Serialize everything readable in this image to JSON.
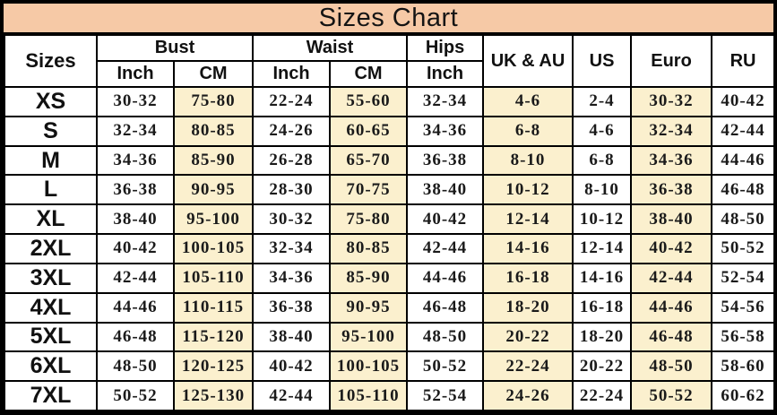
{
  "chart_data": {
    "type": "table",
    "title": "Sizes Chart",
    "header": {
      "sizes_label": "Sizes",
      "groups": [
        {
          "label": "Bust",
          "sub": [
            "Inch",
            "CM"
          ]
        },
        {
          "label": "Waist",
          "sub": [
            "Inch",
            "CM"
          ]
        },
        {
          "label": "Hips",
          "sub": [
            "Inch"
          ]
        }
      ],
      "singles": [
        "UK & AU",
        "US",
        "Euro",
        "RU"
      ]
    },
    "columns": [
      "Sizes",
      "Bust Inch",
      "Bust CM",
      "Waist Inch",
      "Waist CM",
      "Hips Inch",
      "UK & AU",
      "US",
      "Euro",
      "RU"
    ],
    "rows": [
      {
        "size": "XS",
        "values": [
          "30-32",
          "75-80",
          "22-24",
          "55-60",
          "32-34",
          "4-6",
          "2-4",
          "30-32",
          "40-42"
        ]
      },
      {
        "size": "S",
        "values": [
          "32-34",
          "80-85",
          "24-26",
          "60-65",
          "34-36",
          "6-8",
          "4-6",
          "32-34",
          "42-44"
        ]
      },
      {
        "size": "M",
        "values": [
          "34-36",
          "85-90",
          "26-28",
          "65-70",
          "36-38",
          "8-10",
          "6-8",
          "34-36",
          "44-46"
        ]
      },
      {
        "size": "L",
        "values": [
          "36-38",
          "90-95",
          "28-30",
          "70-75",
          "38-40",
          "10-12",
          "8-10",
          "36-38",
          "46-48"
        ]
      },
      {
        "size": "XL",
        "values": [
          "38-40",
          "95-100",
          "30-32",
          "75-80",
          "40-42",
          "12-14",
          "10-12",
          "38-40",
          "48-50"
        ]
      },
      {
        "size": "2XL",
        "values": [
          "40-42",
          "100-105",
          "32-34",
          "80-85",
          "42-44",
          "14-16",
          "12-14",
          "40-42",
          "50-52"
        ]
      },
      {
        "size": "3XL",
        "values": [
          "42-44",
          "105-110",
          "34-36",
          "85-90",
          "44-46",
          "16-18",
          "14-16",
          "42-44",
          "52-54"
        ]
      },
      {
        "size": "4XL",
        "values": [
          "44-46",
          "110-115",
          "36-38",
          "90-95",
          "46-48",
          "18-20",
          "16-18",
          "44-46",
          "54-56"
        ]
      },
      {
        "size": "5XL",
        "values": [
          "46-48",
          "115-120",
          "38-40",
          "95-100",
          "48-50",
          "20-22",
          "18-20",
          "46-48",
          "56-58"
        ]
      },
      {
        "size": "6XL",
        "values": [
          "48-50",
          "120-125",
          "40-42",
          "100-105",
          "50-52",
          "22-24",
          "20-22",
          "48-50",
          "58-60"
        ]
      },
      {
        "size": "7XL",
        "values": [
          "50-52",
          "125-130",
          "42-44",
          "105-110",
          "52-54",
          "24-26",
          "22-24",
          "50-52",
          "60-62"
        ]
      }
    ],
    "highlight_columns": [
      "Bust CM",
      "Waist CM",
      "UK & AU",
      "Euro"
    ],
    "highlight_value_indices": [
      1,
      3,
      5,
      7
    ]
  },
  "colors": {
    "title_bg": "#F6C9A6",
    "highlight_bg": "#FBF0CE",
    "border": "#000000",
    "cell_bg": "#FFFFFF"
  }
}
